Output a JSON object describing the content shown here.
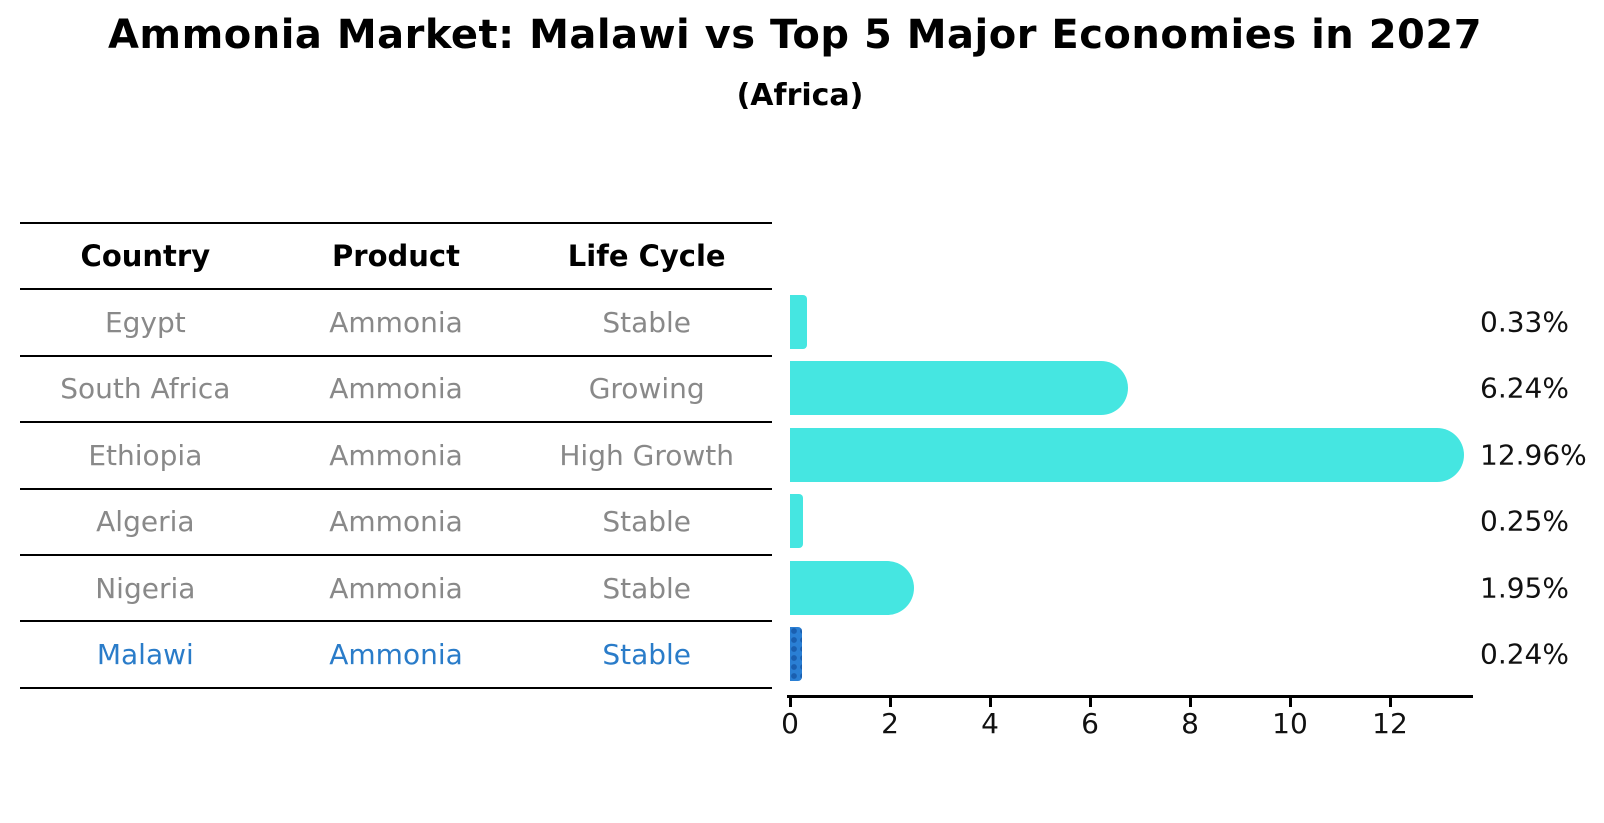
{
  "title": "Ammonia Market: Malawi vs Top 5 Major Economies in 2027",
  "subtitle": "(Africa)",
  "table": {
    "headers": [
      "Country",
      "Product",
      "Life Cycle"
    ],
    "rows": [
      {
        "country": "Egypt",
        "product": "Ammonia",
        "life_cycle": "Stable"
      },
      {
        "country": "South Africa",
        "product": "Ammonia",
        "life_cycle": "Growing"
      },
      {
        "country": "Ethiopia",
        "product": "Ammonia",
        "life_cycle": "High Growth"
      },
      {
        "country": "Algeria",
        "product": "Ammonia",
        "life_cycle": "Stable"
      },
      {
        "country": "Nigeria",
        "product": "Ammonia",
        "life_cycle": "Stable"
      },
      {
        "country": "Malawi",
        "product": "Ammonia",
        "life_cycle": "Stable"
      }
    ],
    "highlight_row": "Malawi"
  },
  "chart_data": {
    "type": "bar",
    "orientation": "horizontal",
    "title": "Ammonia Market: Malawi vs Top 5 Major Economies in 2027",
    "subtitle": "(Africa)",
    "categories": [
      "Egypt",
      "South Africa",
      "Ethiopia",
      "Algeria",
      "Nigeria",
      "Malawi"
    ],
    "values": [
      0.33,
      6.24,
      12.96,
      0.25,
      1.95,
      0.24
    ],
    "value_labels": [
      "0.33%",
      "6.24%",
      "12.96%",
      "0.25%",
      "1.95%",
      "0.24%"
    ],
    "x_ticks": [
      0,
      2,
      4,
      6,
      8,
      10,
      12
    ],
    "x_tick_labels": [
      "0",
      "2",
      "4",
      "6",
      "8",
      "10",
      "12"
    ],
    "xlim": [
      0,
      13.7
    ],
    "grid": false,
    "legend": null,
    "bar_color": "#45e6e1",
    "highlight_bar_color": "#2a7fd4",
    "highlight_index": 5,
    "highlight_hatch": "dots"
  },
  "colors": {
    "background": "#ffffff",
    "bar_cyan": "#45e6e1",
    "bar_blue": "#2a7fd4",
    "bar_blue_dots": "#1a5fb0",
    "table_text_gray": "#898989",
    "table_text_highlight": "#2a7cc9",
    "axis_black": "#000000"
  }
}
